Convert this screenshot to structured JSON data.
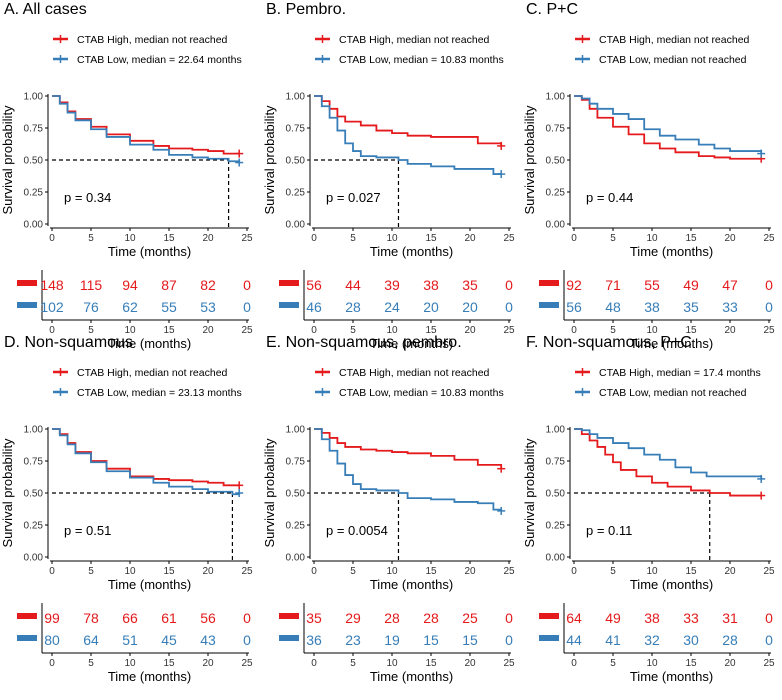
{
  "colors": {
    "high": "#E41A1C",
    "low": "#377EB8",
    "axis": "#000000",
    "median": "#000000"
  },
  "axis_labels": {
    "x": "Time (months)",
    "y": "Survival probability"
  },
  "x_ticks": [
    "0",
    "5",
    "10",
    "15",
    "20",
    "25"
  ],
  "y_ticks": [
    "0.00",
    "0.25",
    "0.50",
    "0.75",
    "1.00"
  ],
  "risk_ticks": [
    "0",
    "5",
    "10",
    "15",
    "20",
    "25"
  ],
  "chart_data": [
    {
      "type": "line",
      "title": "A. All cases",
      "xlabel": "Time (months)",
      "ylabel": "Survival probability",
      "xlim": [
        0,
        25
      ],
      "ylim": [
        0,
        1
      ],
      "pvalue": "p = 0.34",
      "median_x": 22.64,
      "series": [
        {
          "name": "CTAB High, median not reached",
          "group": "high",
          "x": [
            0,
            1,
            2,
            3,
            5,
            7,
            10,
            13,
            15,
            18,
            20,
            22,
            24
          ],
          "y": [
            1.0,
            0.95,
            0.88,
            0.82,
            0.76,
            0.7,
            0.65,
            0.61,
            0.59,
            0.58,
            0.57,
            0.55,
            0.55
          ]
        },
        {
          "name": "CTAB Low, median = 22.64 months",
          "group": "low",
          "x": [
            0,
            1,
            2,
            3,
            5,
            7,
            10,
            13,
            15,
            18,
            20,
            22.64,
            24
          ],
          "y": [
            1.0,
            0.94,
            0.87,
            0.81,
            0.74,
            0.68,
            0.62,
            0.58,
            0.54,
            0.52,
            0.51,
            0.49,
            0.48
          ]
        }
      ],
      "risk_table": [
        {
          "group": "high",
          "values": [
            "148",
            "115",
            "94",
            "87",
            "82",
            "0"
          ]
        },
        {
          "group": "low",
          "values": [
            "102",
            "76",
            "62",
            "55",
            "53",
            "0"
          ]
        }
      ]
    },
    {
      "type": "line",
      "title": "B. Pembro.",
      "xlabel": "Time (months)",
      "ylabel": "Survival probability",
      "xlim": [
        0,
        25
      ],
      "ylim": [
        0,
        1
      ],
      "pvalue": "p = 0.027",
      "median_x": 10.83,
      "series": [
        {
          "name": "CTAB High, median not reached",
          "group": "high",
          "x": [
            0,
            1,
            2,
            3,
            4,
            6,
            8,
            10,
            12,
            15,
            18,
            21,
            24
          ],
          "y": [
            1.0,
            0.96,
            0.9,
            0.84,
            0.8,
            0.77,
            0.73,
            0.71,
            0.69,
            0.68,
            0.68,
            0.63,
            0.61
          ]
        },
        {
          "name": "CTAB Low, median = 10.83 months",
          "group": "low",
          "x": [
            0,
            1,
            2,
            3,
            4,
            5,
            6,
            8,
            10.83,
            12,
            15,
            18,
            21,
            23,
            24
          ],
          "y": [
            1.0,
            0.92,
            0.83,
            0.73,
            0.63,
            0.57,
            0.53,
            0.52,
            0.5,
            0.47,
            0.45,
            0.43,
            0.43,
            0.39,
            0.39
          ]
        }
      ],
      "risk_table": [
        {
          "group": "high",
          "values": [
            "56",
            "44",
            "39",
            "38",
            "35",
            "0"
          ]
        },
        {
          "group": "low",
          "values": [
            "46",
            "28",
            "24",
            "20",
            "20",
            "0"
          ]
        }
      ]
    },
    {
      "type": "line",
      "title": "C. P+C",
      "xlabel": "Time (months)",
      "ylabel": "Survival probability",
      "xlim": [
        0,
        25
      ],
      "ylim": [
        0,
        1
      ],
      "pvalue": "p = 0.44",
      "median_x": null,
      "series": [
        {
          "name": "CTAB High, median not reached",
          "group": "high",
          "x": [
            0,
            1,
            2,
            3,
            5,
            7,
            9,
            11,
            13,
            16,
            18,
            20,
            24
          ],
          "y": [
            1.0,
            0.97,
            0.9,
            0.83,
            0.76,
            0.7,
            0.63,
            0.59,
            0.56,
            0.53,
            0.52,
            0.51,
            0.51
          ]
        },
        {
          "name": "CTAB Low, median not reached",
          "group": "low",
          "x": [
            0,
            1,
            2,
            3,
            5,
            7,
            9,
            11,
            13,
            16,
            18,
            20,
            24
          ],
          "y": [
            1.0,
            0.98,
            0.94,
            0.9,
            0.86,
            0.82,
            0.74,
            0.69,
            0.66,
            0.62,
            0.59,
            0.57,
            0.55
          ]
        }
      ],
      "risk_table": [
        {
          "group": "high",
          "values": [
            "92",
            "71",
            "55",
            "49",
            "47",
            "0"
          ]
        },
        {
          "group": "low",
          "values": [
            "56",
            "48",
            "38",
            "35",
            "33",
            "0"
          ]
        }
      ]
    },
    {
      "type": "line",
      "title": "D. Non-squamous",
      "xlabel": "Time (months)",
      "ylabel": "Survival probability",
      "xlim": [
        0,
        25
      ],
      "ylim": [
        0,
        1
      ],
      "pvalue": "p = 0.51",
      "median_x": 23.13,
      "series": [
        {
          "name": "CTAB High, median not reached",
          "group": "high",
          "x": [
            0,
            1,
            2,
            3,
            5,
            7,
            10,
            13,
            15,
            18,
            20,
            22,
            24
          ],
          "y": [
            1.0,
            0.96,
            0.89,
            0.82,
            0.75,
            0.69,
            0.63,
            0.61,
            0.6,
            0.59,
            0.58,
            0.56,
            0.56
          ]
        },
        {
          "name": "CTAB Low, median = 23.13 months",
          "group": "low",
          "x": [
            0,
            1,
            2,
            3,
            5,
            7,
            10,
            13,
            15,
            18,
            20,
            23.13,
            24
          ],
          "y": [
            1.0,
            0.95,
            0.88,
            0.81,
            0.74,
            0.67,
            0.62,
            0.58,
            0.55,
            0.53,
            0.51,
            0.49,
            0.5
          ]
        }
      ],
      "risk_table": [
        {
          "group": "high",
          "values": [
            "99",
            "78",
            "66",
            "61",
            "56",
            "0"
          ]
        },
        {
          "group": "low",
          "values": [
            "80",
            "64",
            "51",
            "45",
            "43",
            "0"
          ]
        }
      ]
    },
    {
      "type": "line",
      "title": "E. Non-squamous, pembro.",
      "xlabel": "Time (months)",
      "ylabel": "Survival probability",
      "xlim": [
        0,
        25
      ],
      "ylim": [
        0,
        1
      ],
      "pvalue": "p = 0.0054",
      "median_x": 10.83,
      "series": [
        {
          "name": "CTAB High, median not reached",
          "group": "high",
          "x": [
            0,
            1,
            2,
            3,
            4,
            6,
            8,
            10,
            12,
            15,
            18,
            21,
            24
          ],
          "y": [
            1.0,
            0.97,
            0.93,
            0.89,
            0.86,
            0.84,
            0.83,
            0.82,
            0.81,
            0.79,
            0.76,
            0.72,
            0.69
          ]
        },
        {
          "name": "CTAB Low, median = 10.83 months",
          "group": "low",
          "x": [
            0,
            1,
            2,
            3,
            4,
            5,
            6,
            8,
            10.83,
            12,
            15,
            18,
            21,
            23,
            24
          ],
          "y": [
            1.0,
            0.92,
            0.83,
            0.73,
            0.64,
            0.57,
            0.53,
            0.52,
            0.5,
            0.46,
            0.45,
            0.43,
            0.42,
            0.37,
            0.36
          ]
        }
      ],
      "risk_table": [
        {
          "group": "high",
          "values": [
            "35",
            "29",
            "28",
            "28",
            "25",
            "0"
          ]
        },
        {
          "group": "low",
          "values": [
            "36",
            "23",
            "19",
            "15",
            "15",
            "0"
          ]
        }
      ]
    },
    {
      "type": "line",
      "title": "F. Non-squamous, P+C",
      "xlabel": "Time (months)",
      "ylabel": "Survival probability",
      "xlim": [
        0,
        25
      ],
      "ylim": [
        0,
        1
      ],
      "pvalue": "p = 0.11",
      "median_x": 17.4,
      "series": [
        {
          "name": "CTAB High, median = 17.4 months",
          "group": "high",
          "x": [
            0,
            1,
            2,
            3,
            4,
            5,
            6,
            8,
            10,
            12,
            15,
            17.4,
            20,
            24
          ],
          "y": [
            1.0,
            0.96,
            0.91,
            0.86,
            0.8,
            0.74,
            0.68,
            0.63,
            0.58,
            0.55,
            0.52,
            0.5,
            0.48,
            0.48
          ]
        },
        {
          "name": "CTAB Low, median not reached",
          "group": "low",
          "x": [
            0,
            1,
            2,
            3,
            5,
            7,
            9,
            11,
            13,
            15,
            17,
            20,
            24
          ],
          "y": [
            1.0,
            0.99,
            0.96,
            0.93,
            0.89,
            0.85,
            0.8,
            0.76,
            0.7,
            0.66,
            0.63,
            0.63,
            0.61
          ]
        }
      ],
      "risk_table": [
        {
          "group": "high",
          "values": [
            "64",
            "49",
            "38",
            "33",
            "31",
            "0"
          ]
        },
        {
          "group": "low",
          "values": [
            "44",
            "41",
            "32",
            "30",
            "28",
            "0"
          ]
        }
      ]
    }
  ]
}
